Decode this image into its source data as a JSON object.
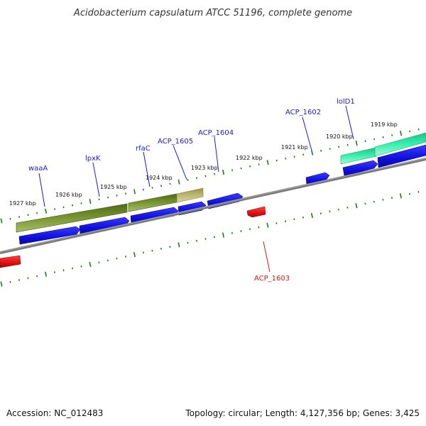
{
  "title": "Acidobacterium capsulatum ATCC 51196, complete genome",
  "footer": {
    "accession": "Accession: NC_012483",
    "summary": "Topology: circular; Length: 4,127,356 bp; Genes: 3,425"
  },
  "kbp_labels": [
    "1927 kbp",
    "1926 kbp",
    "1925 kbp",
    "1924 kbp",
    "1923 kbp",
    "1922 kbp",
    "1921 kbp",
    "1920 kbp",
    "1919 kbp"
  ],
  "gene_labels": {
    "waaA": "waaA",
    "lpxK": "lpxK",
    "rfaC": "rfaC",
    "ACP_1605": "ACP_1605",
    "ACP_1604": "ACP_1604",
    "ACP_1602": "ACP_1602",
    "lolD1": "lolD1",
    "ACP_1603": "ACP_1603"
  },
  "colors": {
    "forward_gene": "#1010e0",
    "reverse_gene": "#e01010",
    "backbone": "#777777",
    "tick": "#1e7a1e",
    "feature_olive": "#6f8a28",
    "feature_khaki": "#b5b06a",
    "feature_teal": "#2ee0a0",
    "forward_label": "#1a1acc",
    "reverse_label": "#cc1a1a"
  }
}
